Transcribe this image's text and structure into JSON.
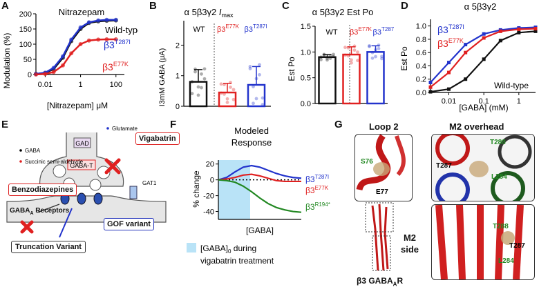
{
  "panels": {
    "A": {
      "letter": "A",
      "title": "Nitrazepam",
      "ylabel": "Modulation (%)",
      "xlabel": "[Nitrazepam] μM",
      "yticks": [
        "0",
        "50",
        "100",
        "150",
        "200"
      ],
      "xticks": [
        "0.01",
        "1",
        "100"
      ],
      "legend": {
        "wt": "Wild-type",
        "t287i": "β3",
        "t287i_sup": "T287I",
        "e77k": "β3",
        "e77k_sup": "E77K"
      }
    },
    "B": {
      "letter": "B",
      "title": "α 5β3γ2 Imax",
      "title_main": "α 5β3γ2 ",
      "title_sym": "I",
      "title_sub": "max",
      "ylabel": "I3mM GABA (μA)",
      "yticks": [
        "0",
        "1",
        "2"
      ],
      "wt": "WT",
      "e77k": "β3",
      "e77k_sup": "E77K",
      "t287i": "β3",
      "t287i_sup": "T287I"
    },
    "C": {
      "letter": "C",
      "title": "α 5β3γ2 Est Po",
      "ylabel": "Est Po",
      "yticks": [
        "0.0",
        "0.5",
        "1.0",
        "1.5"
      ],
      "wt": "WT",
      "e77k": "β3",
      "e77k_sup": "E77K",
      "t287i": "β3",
      "t287i_sup": "T287I"
    },
    "D": {
      "letter": "D",
      "title": "α 5β3γ2",
      "ylabel": "Est Po",
      "xlabel": "[GABA] (mM)",
      "yticks": [
        "0.0",
        "0.2",
        "0.4",
        "0.6",
        "0.8",
        "1.0"
      ],
      "xticks": [
        "0.01",
        "0.1",
        "1"
      ],
      "t287i": "β3",
      "t287i_sup": "T287I",
      "e77k": "β3",
      "e77k_sup": "E77K",
      "wt": "Wild-type"
    },
    "E": {
      "letter": "E",
      "glutamate": "Glutamate",
      "gaba": "GABA",
      "ssa": "Succinic semi-aldehyde",
      "gad": "GAD",
      "gabat": "GABA-T",
      "gat1": "GAT1",
      "vigabatrin": "Vigabatrin",
      "benzo": "Benzodiazepines",
      "receptors": "GABA",
      "receptors_sub": "A",
      "receptors_rest": " Receptors",
      "gof": "GOF variant",
      "trunc": "Truncation Variant"
    },
    "F": {
      "letter": "F",
      "title1": "Modeled",
      "title2": "Response",
      "ylabel": "% change",
      "xlabel": "[GABA]",
      "yticks": [
        "20",
        "0",
        "-20",
        "-40"
      ],
      "t287i": "β3",
      "t287i_sup": "T287I",
      "e77k": "β3",
      "e77k_sup": "E77K",
      "r194": "β3",
      "r194_sup": "R194*",
      "legend1": "[GABA]",
      "legend1_sub": "0",
      "legend1_rest": " during",
      "legend2": "vigabatrin treatment"
    },
    "G": {
      "letter": "G",
      "loop2": "Loop 2",
      "m2over": "M2 overhead",
      "s76": "S76",
      "e77": "E77",
      "t288": "T288",
      "t287": "T287",
      "l284": "L284",
      "m2side1": "M2",
      "m2side2": "side",
      "t288b": "T288",
      "t287b": "T287",
      "l284b": "L284",
      "receptor": "β3 GABA",
      "receptor_sub": "A",
      "receptor_rest": "R"
    }
  },
  "colors": {
    "wt": "#111111",
    "t287i": "#2233cc",
    "e77k": "#e02020",
    "r194": "#228822",
    "shade": "#b9e3f7"
  },
  "chart_data": [
    {
      "panel": "A",
      "type": "line",
      "title": "Nitrazepam",
      "xlabel": "[Nitrazepam] μM",
      "ylabel": "Modulation (%)",
      "xscale": "log",
      "xlim": [
        0.003,
        300
      ],
      "ylim": [
        0,
        200
      ],
      "x": [
        0.003,
        0.01,
        0.03,
        0.1,
        0.3,
        1,
        3,
        10,
        30,
        100
      ],
      "series": [
        {
          "name": "Wild-type",
          "values": [
            2,
            5,
            18,
            55,
            110,
            150,
            170,
            175,
            177,
            178
          ]
        },
        {
          "name": "β3T287I",
          "values": [
            2,
            6,
            22,
            60,
            115,
            155,
            172,
            178,
            180,
            180
          ]
        },
        {
          "name": "β3E77K",
          "values": [
            0,
            2,
            8,
            30,
            70,
            100,
            112,
            115,
            116,
            116
          ]
        }
      ]
    },
    {
      "panel": "B",
      "type": "bar",
      "title": "α 5β3γ2 Imax",
      "ylabel": "I3mM GABA (μA)",
      "categories": [
        "WT",
        "β3E77K",
        "β3T287I"
      ],
      "values": [
        0.8,
        0.45,
        0.7
      ],
      "errors": [
        0.4,
        0.3,
        0.6
      ],
      "ylim": [
        0,
        2.8
      ]
    },
    {
      "panel": "C",
      "type": "bar",
      "title": "α 5β3γ2 Est Po",
      "ylabel": "Est Po",
      "categories": [
        "WT",
        "β3E77K",
        "β3T287I"
      ],
      "values": [
        0.9,
        0.95,
        1.0
      ],
      "errors": [
        0.05,
        0.15,
        0.12
      ],
      "ylim": [
        0,
        1.5
      ]
    },
    {
      "panel": "D",
      "type": "line",
      "title": "α 5β3γ2",
      "xlabel": "[GABA] (mM)",
      "ylabel": "Est Po",
      "xscale": "log",
      "xlim": [
        0.003,
        3
      ],
      "ylim": [
        0,
        1.1
      ],
      "x": [
        0.003,
        0.01,
        0.03,
        0.1,
        0.3,
        1,
        3
      ],
      "series": [
        {
          "name": "Wild-type",
          "values": [
            0.01,
            0.05,
            0.2,
            0.5,
            0.78,
            0.9,
            0.92
          ]
        },
        {
          "name": "β3T287I",
          "values": [
            0.15,
            0.45,
            0.72,
            0.88,
            0.94,
            0.97,
            0.98
          ]
        },
        {
          "name": "β3E77K",
          "values": [
            0.08,
            0.3,
            0.6,
            0.82,
            0.92,
            0.95,
            0.96
          ]
        }
      ]
    },
    {
      "panel": "F",
      "type": "line",
      "title": "Modeled Response",
      "ylabel": "% change",
      "xlabel": "[GABA]",
      "ylim": [
        -50,
        25
      ],
      "x": [
        0,
        1,
        2,
        3,
        4,
        5,
        6,
        7,
        8,
        9,
        10
      ],
      "series": [
        {
          "name": "β3T287I",
          "values": [
            0,
            3,
            10,
            16,
            18,
            16,
            12,
            8,
            5,
            3,
            2
          ]
        },
        {
          "name": "β3E77K",
          "values": [
            0,
            1,
            3,
            6,
            7,
            5,
            2,
            -1,
            -2,
            -2,
            -2
          ]
        },
        {
          "name": "β3R194*",
          "values": [
            0,
            -1,
            -3,
            -8,
            -15,
            -23,
            -30,
            -35,
            -38,
            -40,
            -41
          ]
        }
      ]
    }
  ]
}
